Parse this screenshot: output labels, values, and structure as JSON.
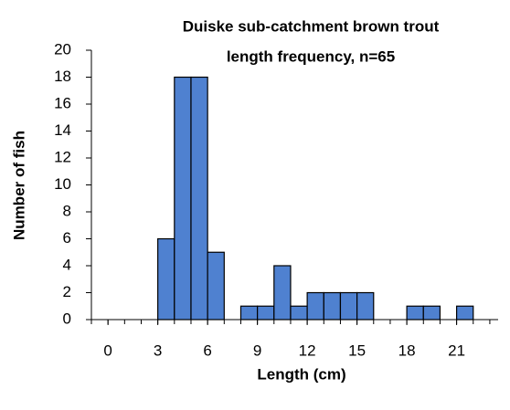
{
  "chart_data": {
    "type": "histogram",
    "title": [
      "Duiske sub-catchment brown trout",
      "length frequency, n=65"
    ],
    "xlabel": "Length (cm)",
    "ylabel": "Number of fish",
    "bins": [
      3,
      4,
      5,
      6,
      7,
      8,
      9,
      10,
      11,
      12,
      13,
      14,
      15,
      16,
      17,
      18,
      19,
      20,
      21,
      22
    ],
    "values": [
      6,
      18,
      18,
      5,
      0,
      1,
      1,
      4,
      1,
      2,
      2,
      2,
      2,
      0,
      0,
      1,
      1,
      0,
      1
    ],
    "color": "#4f81d0",
    "xlim": [
      -1,
      23.5
    ],
    "xticks": [
      0,
      3,
      6,
      9,
      12,
      15,
      18,
      21
    ],
    "ylim": [
      0,
      20
    ],
    "yticks": [
      0,
      2,
      4,
      6,
      8,
      10,
      12,
      14,
      16,
      18,
      20
    ],
    "grid": false
  }
}
